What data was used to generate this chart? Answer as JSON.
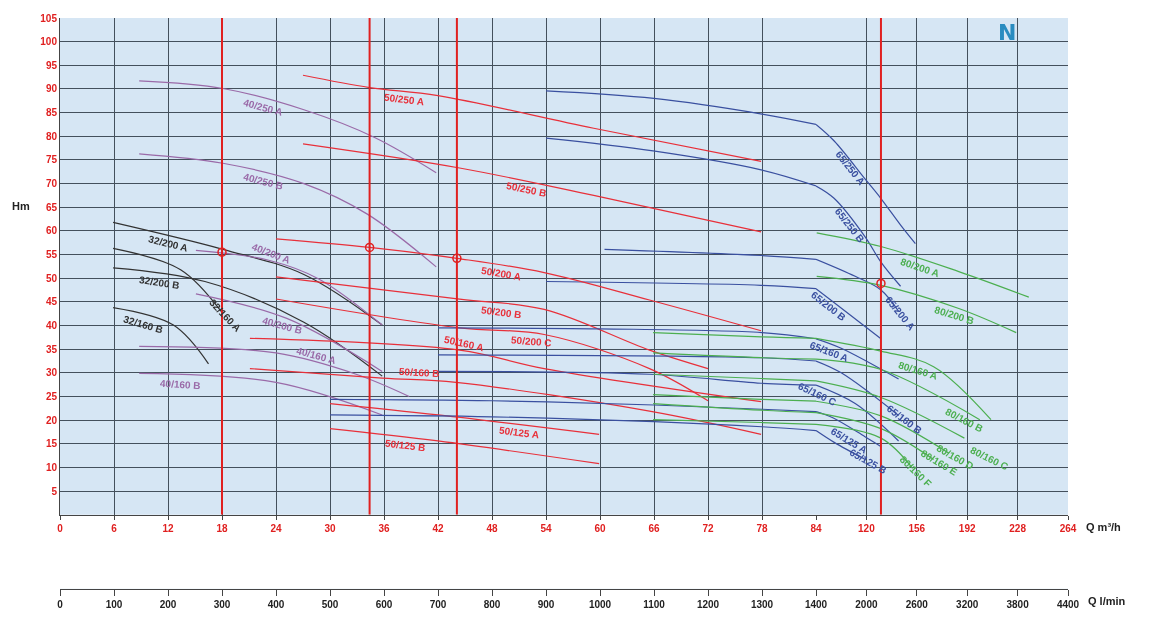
{
  "chart_data": [
    {
      "type": "line",
      "ylabel": "Hm",
      "xlim": [
        0,
        84
      ],
      "xticks": [
        0,
        6,
        12,
        18,
        24,
        30,
        36,
        42,
        48,
        54,
        60,
        66,
        72,
        78,
        84
      ],
      "x2lim": [
        0,
        1400
      ],
      "x2ticks": [
        0,
        100,
        200,
        300,
        400,
        500,
        600,
        700,
        800,
        900,
        1000,
        1100,
        1200,
        1300,
        1400
      ],
      "ylim": [
        0,
        105
      ],
      "yticks": [
        5,
        10,
        15,
        20,
        25,
        30,
        35,
        40,
        45,
        50,
        55,
        60,
        65,
        70,
        75,
        80,
        85,
        90,
        95,
        100,
        105
      ],
      "grid": true,
      "legend": false,
      "marker": "none",
      "line_style": "solid",
      "ref_lines": [
        {
          "axis": "x",
          "value": 18,
          "color": "#e02020"
        },
        {
          "axis": "x",
          "value": 34.4,
          "color": "#e02020"
        },
        {
          "axis": "x",
          "value": 44.1,
          "color": "#e02020"
        }
      ],
      "series": [
        {
          "name": "40/250 A",
          "color": "#9a6aa8",
          "x": [
            8.8,
            18.1,
            27.1,
            34.9,
            41.8
          ],
          "values": [
            91.7,
            90.1,
            85.6,
            79.8,
            72.3
          ]
        },
        {
          "name": "40/250 B",
          "color": "#9a6aa8",
          "x": [
            8.8,
            18.1,
            27.1,
            34.1,
            41.8
          ],
          "values": [
            76.3,
            74.3,
            70.0,
            63.6,
            52.4
          ]
        },
        {
          "name": "50/250 A",
          "color": "#e8303a",
          "x": [
            27,
            34.4,
            42,
            59.3,
            77.9
          ],
          "values": [
            92.9,
            90.3,
            88.6,
            81.7,
            74.7
          ]
        },
        {
          "name": "50/250 B",
          "color": "#e8303a",
          "x": [
            27,
            44.4,
            59.3,
            77.9
          ],
          "values": [
            78.4,
            73.3,
            67.5,
            59.8
          ]
        },
        {
          "color": "#3a50a0",
          "x": [
            54,
            66,
            78,
            84
          ],
          "values": [
            89.6,
            88,
            84.7,
            82.5
          ]
        },
        {
          "color": "#3a50a0",
          "x": [
            54,
            65.9,
            77.9,
            84
          ],
          "values": [
            79.6,
            76.9,
            72.9,
            69.5
          ]
        },
        {
          "color": "#3a50a0",
          "x": [
            60.5,
            77.9,
            84
          ],
          "values": [
            56.1,
            54.8,
            54.0
          ]
        },
        {
          "color": "#3a50a0",
          "x": [
            54,
            77.9,
            84
          ],
          "values": [
            49.3,
            48.5,
            47.8
          ]
        },
        {
          "name": "32/200 A",
          "color": "#333333",
          "x": [
            5.9,
            18.1,
            27.1,
            35.8
          ],
          "values": [
            61.8,
            56.1,
            50.8,
            40.1
          ]
        },
        {
          "name": "40/200 A",
          "color": "#9a6aa8",
          "x": [
            15.1,
            23.2,
            28.7,
            35.8
          ],
          "values": [
            55.9,
            53.8,
            49.9,
            40.1
          ]
        },
        {
          "name": "50/200 A",
          "color": "#e8303a",
          "x": [
            24,
            34.4,
            44.1,
            53.8,
            65.5,
            77.9
          ],
          "values": [
            58.3,
            56.5,
            54.2,
            51.2,
            45.4,
            38.9
          ]
        },
        {
          "name": "32/160 A",
          "color": "#333333",
          "x": [
            5.9,
            13.4,
            17.9
          ],
          "values": [
            56.3,
            51.8,
            43
          ]
        },
        {
          "name": "32/200 B",
          "color": "#333333",
          "x": [
            5.9,
            16.1,
            27.1,
            35.8
          ],
          "values": [
            52.2,
            49.3,
            40.7,
            29.3
          ]
        },
        {
          "name": "32/160 B",
          "color": "#333333",
          "x": [
            5.9,
            12.6,
            16.5
          ],
          "values": [
            43.8,
            40.1,
            31.9
          ]
        },
        {
          "name": "40/200 B",
          "color": "#9a6aa8",
          "x": [
            15.1,
            25.2,
            35.8
          ],
          "values": [
            46.7,
            41.5,
            30.3
          ]
        },
        {
          "name": "50/200 B",
          "color": "#e8303a",
          "x": [
            24,
            44.4,
            53.8,
            65.5,
            72
          ],
          "values": [
            50.3,
            45.6,
            43.4,
            34.8,
            30.9
          ]
        },
        {
          "name": "50/200 C",
          "color": "#e8303a",
          "x": [
            24,
            44.4,
            53.8,
            65.5,
            72
          ],
          "values": [
            45.6,
            39.5,
            38.1,
            30.9,
            24.1
          ]
        },
        {
          "name": "50/160 A",
          "color": "#e8303a",
          "x": [
            21.1,
            44.4,
            53.8,
            77.9
          ],
          "values": [
            37.3,
            34.8,
            30.9,
            23.9
          ]
        },
        {
          "name": "40/160 A",
          "color": "#9a6aa8",
          "x": [
            8.8,
            24,
            32.9,
            38.8
          ],
          "values": [
            35.6,
            34.2,
            29.7,
            25
          ]
        },
        {
          "name": "40/160 B",
          "color": "#9a6aa8",
          "x": [
            8.8,
            24,
            35.8
          ],
          "values": [
            29.9,
            28,
            21.1
          ]
        },
        {
          "name": "50/160 B",
          "color": "#e8303a",
          "x": [
            21.1,
            35.8,
            44,
            65.5,
            77.9
          ],
          "values": [
            30.9,
            28.9,
            28,
            21.9,
            17
          ]
        },
        {
          "name": "50/125 A",
          "color": "#e8303a",
          "x": [
            30,
            42,
            59.9
          ],
          "values": [
            23.5,
            21.1,
            17
          ]
        },
        {
          "name": "50/125 B",
          "color": "#e8303a",
          "x": [
            30,
            42,
            59.9
          ],
          "values": [
            18.2,
            15.6,
            10.8
          ]
        },
        {
          "color": "#3a50a0",
          "x": [
            42,
            60,
            78,
            84
          ],
          "values": [
            39.5,
            39.3,
            38.5,
            37.2
          ]
        },
        {
          "color": "#3a50a0",
          "x": [
            42,
            77.9,
            84
          ],
          "values": [
            33.8,
            33.2,
            32.5
          ]
        },
        {
          "color": "#3a50a0",
          "x": [
            42,
            65.5,
            77.9,
            84
          ],
          "values": [
            30.3,
            29.7,
            27.8,
            27.4
          ]
        },
        {
          "color": "#3a50a0",
          "x": [
            30,
            48,
            66,
            78,
            84
          ],
          "values": [
            24.4,
            24.1,
            23.2,
            22.3,
            21.8
          ]
        },
        {
          "color": "#3a50a0",
          "x": [
            30,
            48,
            66,
            78,
            84
          ],
          "values": [
            21.1,
            20.7,
            19.7,
            18.6,
            17.8
          ]
        },
        {
          "color": "#4caf50",
          "x": [
            65.9,
            77.9,
            84
          ],
          "values": [
            38.5,
            37.6,
            37.3
          ]
        },
        {
          "color": "#4caf50",
          "x": [
            65.9,
            77.9,
            84
          ],
          "values": [
            34.2,
            33.2,
            32.9
          ]
        },
        {
          "color": "#4caf50",
          "x": [
            65.9,
            77.9,
            84
          ],
          "values": [
            29.7,
            28.8,
            28.3
          ]
        },
        {
          "color": "#4caf50",
          "x": [
            65.9,
            77.9,
            84
          ],
          "values": [
            25.4,
            24.4,
            24.0
          ]
        },
        {
          "color": "#4caf50",
          "x": [
            65.9,
            77.9,
            84
          ],
          "values": [
            23.5,
            22.1,
            21.6
          ]
        },
        {
          "color": "#4caf50",
          "x": [
            65.9,
            77.9,
            84
          ],
          "values": [
            20.1,
            19.5,
            19.1
          ]
        },
        {
          "type": "scatter",
          "marker": "circle",
          "color": "#e02020",
          "x": [
            18,
            34.4,
            44.1
          ],
          "values": [
            55.5,
            56.5,
            54.2
          ]
        }
      ]
    },
    {
      "type": "line",
      "xlabel": "Q m³/h",
      "x2label": "Q l/min",
      "tick_labels": "x",
      "xlim": [
        84,
        264
      ],
      "xticks": [
        120,
        156,
        192,
        228,
        264
      ],
      "x2lim": [
        1400,
        4400
      ],
      "x2ticks": [
        2000,
        2600,
        3200,
        3800,
        4400
      ],
      "ylim": [
        0,
        105
      ],
      "yticks": [
        5,
        10,
        15,
        20,
        25,
        30,
        35,
        40,
        45,
        50,
        55,
        60,
        65,
        70,
        75,
        80,
        85,
        90,
        95,
        100,
        105
      ],
      "grid": true,
      "legend": false,
      "marker": "none",
      "line_style": "solid",
      "annotations": [
        "N"
      ],
      "ref_lines": [
        {
          "axis": "x",
          "value": 130.4,
          "color": "#e02020"
        }
      ],
      "series": [
        {
          "name": "65/250 A",
          "color": "#3a50a0",
          "x": [
            84,
            97,
            119,
            130,
            145,
            155
          ],
          "values": [
            82.5,
            79,
            71,
            67,
            61,
            57.3
          ]
        },
        {
          "name": "65/250 B",
          "color": "#3a50a0",
          "x": [
            84,
            96.9,
            119.2,
            130.4,
            144.4
          ],
          "values": [
            69.5,
            66.9,
            58.7,
            53.4,
            48.3
          ]
        },
        {
          "name": "80/200 A",
          "color": "#4caf50",
          "x": [
            84.5,
            130.4,
            186,
            236
          ],
          "values": [
            59.6,
            56.7,
            51.4,
            46
          ]
        },
        {
          "name": "65/200 A",
          "color": "#3a50a0",
          "x": [
            84,
            112,
            130.4,
            143
          ],
          "values": [
            54.0,
            50.4,
            47.5,
            43
          ]
        },
        {
          "name": "80/200 B",
          "color": "#4caf50",
          "x": [
            84.5,
            130.4,
            186,
            227
          ],
          "values": [
            50.4,
            48.5,
            43.6,
            38.5
          ]
        },
        {
          "name": "65/200 B",
          "color": "#3a50a0",
          "x": [
            84,
            102.4,
            130.4
          ],
          "values": [
            47.8,
            43.6,
            37.2
          ]
        },
        {
          "name": "65/160 A",
          "color": "#3a50a0",
          "x": [
            84,
            102,
            143
          ],
          "values": [
            37.2,
            35.2,
            28.7
          ]
        },
        {
          "name": "80/160 A",
          "color": "#4caf50",
          "x": [
            84,
            130.4,
            168,
            209
          ],
          "values": [
            37.3,
            34.6,
            31.3,
            20.1
          ]
        },
        {
          "name": "65/160 B",
          "color": "#3a50a0",
          "x": [
            84,
            102,
            143
          ],
          "values": [
            32.5,
            30,
            21
          ]
        },
        {
          "name": "80/160 B",
          "color": "#4caf50",
          "x": [
            84,
            130.4,
            201
          ],
          "values": [
            32.9,
            30.7,
            20.1
          ]
        },
        {
          "name": "65/160 C",
          "color": "#3a50a0",
          "x": [
            84,
            112,
            143
          ],
          "values": [
            27.4,
            23.5,
            15.6
          ]
        },
        {
          "name": "80/160 C",
          "color": "#4caf50",
          "x": [
            84,
            130.4,
            190
          ],
          "values": [
            28.3,
            24.8,
            16.2
          ]
        },
        {
          "name": "65/125 A",
          "color": "#3a50a0",
          "x": [
            84,
            96,
            119,
            130
          ],
          "values": [
            21.8,
            20.5,
            16.5,
            14.5
          ]
        },
        {
          "name": "80/160 D",
          "color": "#4caf50",
          "x": [
            84,
            130.4,
            179
          ],
          "values": [
            24.0,
            20.9,
            13
          ]
        },
        {
          "name": "65/125 B",
          "color": "#3a50a0",
          "x": [
            84,
            97,
            119.2
          ],
          "values": [
            17.8,
            15.3,
            11.7
          ]
        },
        {
          "name": "80/160 E",
          "color": "#4caf50",
          "x": [
            84,
            130.4,
            168
          ],
          "values": [
            21.6,
            18.2,
            11.7
          ]
        },
        {
          "name": "80/160 F",
          "color": "#4caf50",
          "x": [
            84,
            130.4,
            153
          ],
          "values": [
            19.1,
            16.2,
            9.8
          ]
        },
        {
          "type": "scatter",
          "marker": "circle",
          "color": "#e02020",
          "x": [
            130.4
          ],
          "values": [
            48.9
          ]
        }
      ]
    }
  ]
}
